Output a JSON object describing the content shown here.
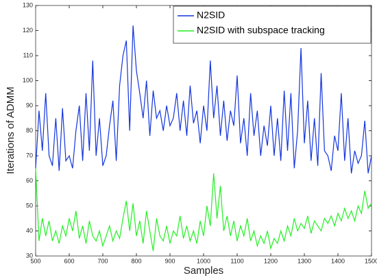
{
  "chart_data": {
    "type": "line",
    "xlabel": "Samples",
    "ylabel": "Iterations of ADMM",
    "x": [
      500,
      510,
      520,
      530,
      540,
      550,
      560,
      570,
      580,
      590,
      600,
      610,
      620,
      630,
      640,
      650,
      660,
      670,
      680,
      690,
      700,
      710,
      720,
      730,
      740,
      750,
      760,
      770,
      780,
      790,
      800,
      810,
      820,
      830,
      840,
      850,
      860,
      870,
      880,
      890,
      900,
      910,
      920,
      930,
      940,
      950,
      960,
      970,
      980,
      990,
      1000,
      1010,
      1020,
      1030,
      1040,
      1050,
      1060,
      1070,
      1080,
      1090,
      1100,
      1110,
      1120,
      1130,
      1140,
      1150,
      1160,
      1170,
      1180,
      1190,
      1200,
      1210,
      1220,
      1230,
      1240,
      1250,
      1260,
      1270,
      1280,
      1290,
      1300,
      1310,
      1320,
      1330,
      1340,
      1350,
      1360,
      1370,
      1380,
      1390,
      1400,
      1410,
      1420,
      1430,
      1440,
      1450,
      1460,
      1470,
      1480,
      1490,
      1500
    ],
    "series": [
      {
        "name": "N2SID",
        "color": "#1133dd",
        "values": [
          65,
          88,
          72,
          95,
          70,
          66,
          85,
          64,
          89,
          68,
          70,
          65,
          80,
          90,
          68,
          95,
          72,
          108,
          70,
          85,
          66,
          70,
          82,
          92,
          68,
          98,
          110,
          116,
          80,
          122,
          104,
          95,
          85,
          100,
          78,
          96,
          85,
          88,
          80,
          90,
          82,
          85,
          95,
          80,
          92,
          78,
          98,
          83,
          88,
          75,
          90,
          80,
          108,
          85,
          98,
          78,
          92,
          76,
          88,
          82,
          102,
          75,
          85,
          70,
          95,
          78,
          88,
          70,
          82,
          74,
          90,
          70,
          85,
          68,
          96,
          72,
          95,
          65,
          80,
          113,
          75,
          92,
          68,
          85,
          66,
          103,
          72,
          70,
          64,
          78,
          72,
          95,
          68,
          85,
          63,
          72,
          67,
          70,
          84,
          63,
          70
        ]
      },
      {
        "name": "N2SID with subspace tracking",
        "color": "#22ee22",
        "values": [
          65,
          36,
          45,
          38,
          44,
          36,
          40,
          35,
          42,
          38,
          45,
          40,
          48,
          37,
          42,
          35,
          44,
          38,
          36,
          40,
          34,
          38,
          42,
          36,
          40,
          37,
          45,
          52,
          40,
          51,
          38,
          44,
          35,
          48,
          40,
          32,
          45,
          38,
          36,
          42,
          35,
          40,
          38,
          46,
          37,
          42,
          36,
          40,
          35,
          44,
          38,
          50,
          42,
          63,
          45,
          58,
          40,
          46,
          38,
          44,
          36,
          42,
          38,
          45,
          36,
          40,
          34,
          38,
          35,
          40,
          33,
          37,
          35,
          40,
          36,
          42,
          38,
          45,
          40,
          43,
          41,
          46,
          39,
          44,
          42,
          40,
          45,
          43,
          46,
          42,
          47,
          44,
          49,
          45,
          48,
          44,
          50,
          47,
          56,
          49,
          51
        ]
      }
    ],
    "xlim": [
      500,
      1500
    ],
    "ylim": [
      30,
      130
    ],
    "xticks": [
      500,
      600,
      700,
      800,
      900,
      1000,
      1100,
      1200,
      1300,
      1400,
      1500
    ],
    "yticks": [
      30,
      40,
      50,
      60,
      70,
      80,
      90,
      100,
      110,
      120,
      130
    ],
    "grid": false,
    "legend": "upper right"
  }
}
